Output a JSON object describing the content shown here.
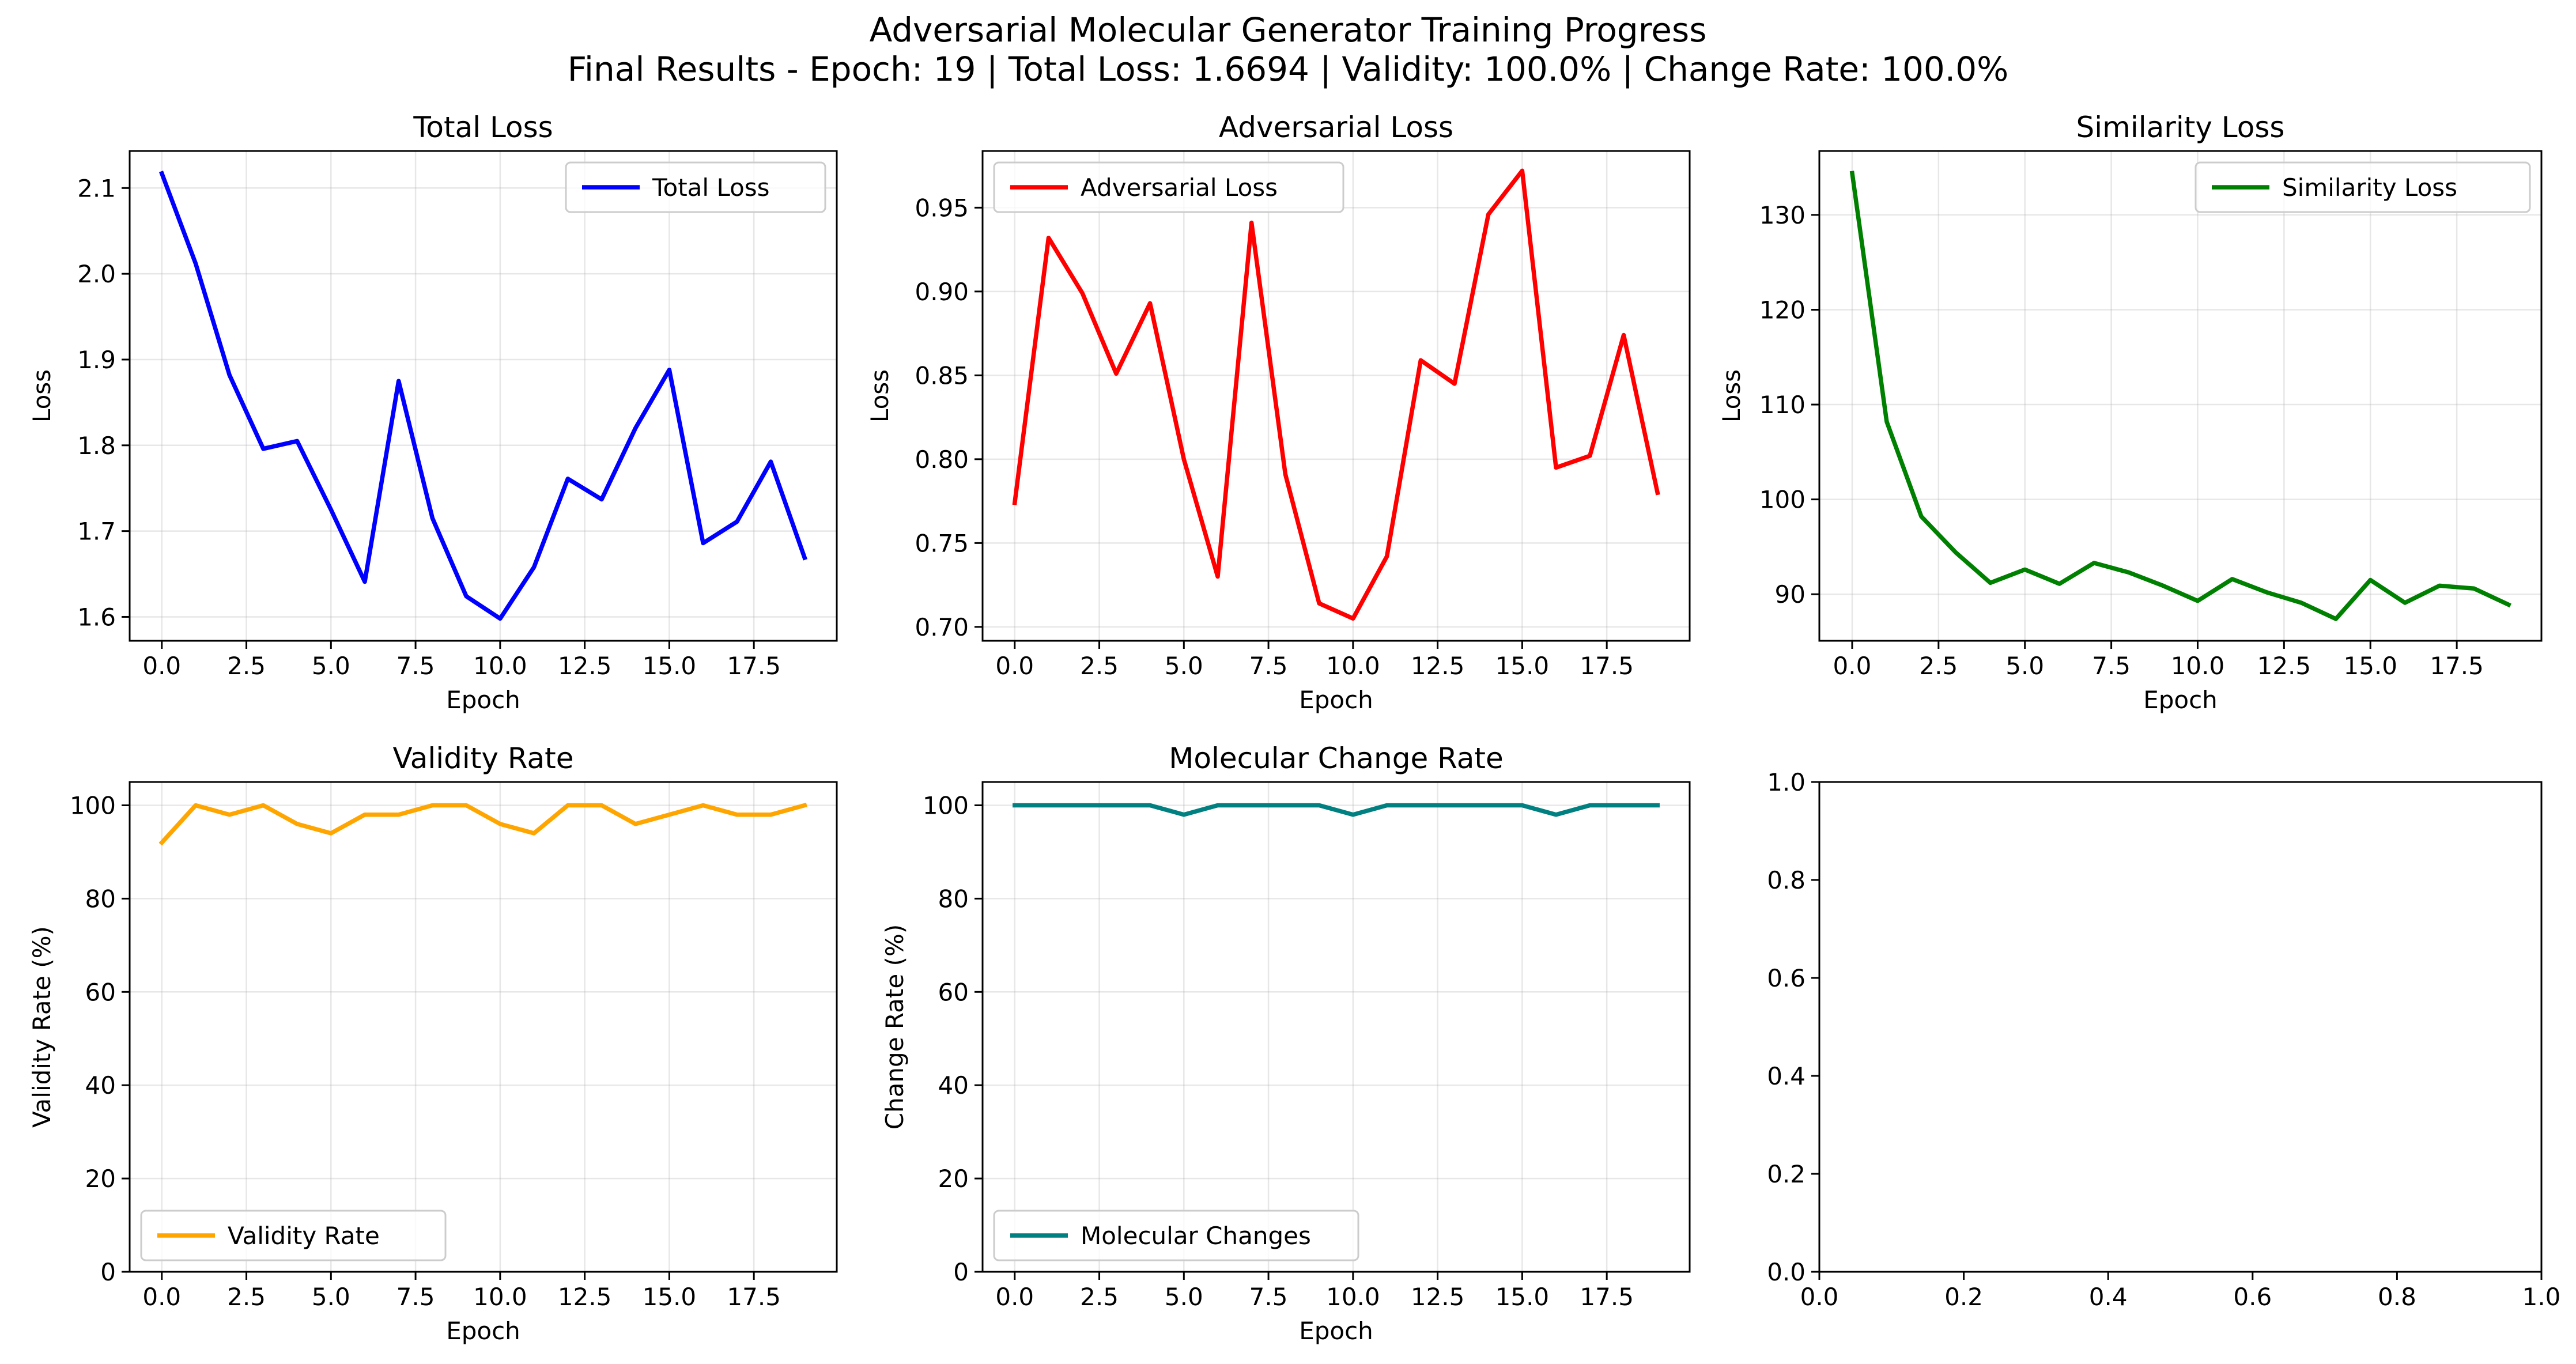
{
  "figure": {
    "suptitle_line1": "Adversarial Molecular Generator Training Progress",
    "suptitle_line2": "Final Results - Epoch: 19 | Total Loss: 1.6694 | Validity: 100.0% | Change Rate: 100.0%"
  },
  "chart_data": [
    {
      "type": "line",
      "title": "Total Loss",
      "xlabel": "Epoch",
      "ylabel": "Loss",
      "xlim": [
        -0.95,
        19.95
      ],
      "ylim": [
        1.5721,
        2.1432
      ],
      "xticks": [
        0,
        2.5,
        5,
        7.5,
        10,
        12.5,
        15,
        17.5
      ],
      "xtick_labels": [
        "0.0",
        "2.5",
        "5.0",
        "7.5",
        "10.0",
        "12.5",
        "15.0",
        "17.5"
      ],
      "yticks": [
        1.6,
        1.7,
        1.8,
        1.9,
        2.0,
        2.1
      ],
      "ytick_labels": [
        "1.6",
        "1.7",
        "1.8",
        "1.9",
        "2.0",
        "2.1"
      ],
      "grid": true,
      "legend": "upper right",
      "series": [
        {
          "name": "Total Loss",
          "color": "#0000ff",
          "x": [
            0,
            1,
            2,
            3,
            4,
            5,
            6,
            7,
            8,
            9,
            10,
            11,
            12,
            13,
            14,
            15,
            16,
            17,
            18,
            19
          ],
          "values": [
            2.117,
            2.012,
            1.882,
            1.796,
            1.805,
            1.725,
            1.641,
            1.875,
            1.715,
            1.624,
            1.598,
            1.658,
            1.761,
            1.737,
            1.82,
            1.888,
            1.686,
            1.711,
            1.781,
            1.669
          ]
        }
      ]
    },
    {
      "type": "line",
      "title": "Adversarial Loss",
      "xlabel": "Epoch",
      "ylabel": "Loss",
      "xlim": [
        -0.95,
        19.95
      ],
      "ylim": [
        0.6917,
        0.9838
      ],
      "xticks": [
        0,
        2.5,
        5,
        7.5,
        10,
        12.5,
        15,
        17.5
      ],
      "xtick_labels": [
        "0.0",
        "2.5",
        "5.0",
        "7.5",
        "10.0",
        "12.5",
        "15.0",
        "17.5"
      ],
      "yticks": [
        0.7,
        0.75,
        0.8,
        0.85,
        0.9,
        0.95
      ],
      "ytick_labels": [
        "0.70",
        "0.75",
        "0.80",
        "0.85",
        "0.90",
        "0.95"
      ],
      "grid": true,
      "legend": "upper left",
      "series": [
        {
          "name": "Adversarial Loss",
          "color": "#ff0000",
          "x": [
            0,
            1,
            2,
            3,
            4,
            5,
            6,
            7,
            8,
            9,
            10,
            11,
            12,
            13,
            14,
            15,
            16,
            17,
            18,
            19
          ],
          "values": [
            0.774,
            0.932,
            0.899,
            0.851,
            0.893,
            0.8,
            0.73,
            0.941,
            0.791,
            0.714,
            0.705,
            0.742,
            0.859,
            0.845,
            0.946,
            0.972,
            0.795,
            0.802,
            0.874,
            0.78
          ]
        }
      ]
    },
    {
      "type": "line",
      "title": "Similarity Loss",
      "xlabel": "Epoch",
      "ylabel": "Loss",
      "xlim": [
        -0.95,
        19.95
      ],
      "ylim": [
        85.09,
        136.74
      ],
      "xticks": [
        0,
        2.5,
        5,
        7.5,
        10,
        12.5,
        15,
        17.5
      ],
      "xtick_labels": [
        "0.0",
        "2.5",
        "5.0",
        "7.5",
        "10.0",
        "12.5",
        "15.0",
        "17.5"
      ],
      "yticks": [
        90,
        100,
        110,
        120,
        130
      ],
      "ytick_labels": [
        "90",
        "100",
        "110",
        "120",
        "130"
      ],
      "grid": true,
      "legend": "upper right",
      "series": [
        {
          "name": "Similarity Loss",
          "color": "#008000",
          "x": [
            0,
            1,
            2,
            3,
            4,
            5,
            6,
            7,
            8,
            9,
            10,
            11,
            12,
            13,
            14,
            15,
            16,
            17,
            18,
            19
          ],
          "values": [
            134.4,
            108.2,
            98.2,
            94.4,
            91.2,
            92.6,
            91.1,
            93.3,
            92.3,
            90.9,
            89.3,
            91.6,
            90.2,
            89.1,
            87.4,
            91.5,
            89.1,
            90.9,
            90.6,
            88.9
          ]
        }
      ]
    },
    {
      "type": "line",
      "title": "Validity Rate",
      "xlabel": "Epoch",
      "ylabel": "Validity Rate (%)",
      "xlim": [
        -0.95,
        19.95
      ],
      "ylim": [
        0,
        105
      ],
      "xticks": [
        0,
        2.5,
        5,
        7.5,
        10,
        12.5,
        15,
        17.5
      ],
      "xtick_labels": [
        "0.0",
        "2.5",
        "5.0",
        "7.5",
        "10.0",
        "12.5",
        "15.0",
        "17.5"
      ],
      "yticks": [
        0,
        20,
        40,
        60,
        80,
        100
      ],
      "ytick_labels": [
        "0",
        "20",
        "40",
        "60",
        "80",
        "100"
      ],
      "grid": true,
      "legend": "lower left",
      "series": [
        {
          "name": "Validity Rate",
          "color": "#ffa500",
          "x": [
            0,
            1,
            2,
            3,
            4,
            5,
            6,
            7,
            8,
            9,
            10,
            11,
            12,
            13,
            14,
            15,
            16,
            17,
            18,
            19
          ],
          "values": [
            92,
            100,
            98,
            100,
            96,
            94,
            98,
            98,
            100,
            100,
            96,
            94,
            100,
            100,
            96,
            98,
            100,
            98,
            98,
            100
          ]
        }
      ]
    },
    {
      "type": "line",
      "title": "Molecular Change Rate",
      "xlabel": "Epoch",
      "ylabel": "Change Rate (%)",
      "xlim": [
        -0.95,
        19.95
      ],
      "ylim": [
        0,
        105
      ],
      "xticks": [
        0,
        2.5,
        5,
        7.5,
        10,
        12.5,
        15,
        17.5
      ],
      "xtick_labels": [
        "0.0",
        "2.5",
        "5.0",
        "7.5",
        "10.0",
        "12.5",
        "15.0",
        "17.5"
      ],
      "yticks": [
        0,
        20,
        40,
        60,
        80,
        100
      ],
      "ytick_labels": [
        "0",
        "20",
        "40",
        "60",
        "80",
        "100"
      ],
      "grid": true,
      "legend": "lower left",
      "series": [
        {
          "name": "Molecular Changes",
          "color": "#008080",
          "x": [
            0,
            1,
            2,
            3,
            4,
            5,
            6,
            7,
            8,
            9,
            10,
            11,
            12,
            13,
            14,
            15,
            16,
            17,
            18,
            19
          ],
          "values": [
            100,
            100,
            100,
            100,
            100,
            98,
            100,
            100,
            100,
            100,
            98,
            100,
            100,
            100,
            100,
            100,
            98,
            100,
            100,
            100
          ]
        }
      ]
    },
    {
      "type": "line",
      "title": "",
      "xlabel": "",
      "ylabel": "",
      "xlim": [
        0,
        1
      ],
      "ylim": [
        0,
        1
      ],
      "xticks": [
        0,
        0.2,
        0.4,
        0.6,
        0.8,
        1.0
      ],
      "xtick_labels": [
        "0.0",
        "0.2",
        "0.4",
        "0.6",
        "0.8",
        "1.0"
      ],
      "yticks": [
        0,
        0.2,
        0.4,
        0.6,
        0.8,
        1.0
      ],
      "ytick_labels": [
        "0.0",
        "0.2",
        "0.4",
        "0.6",
        "0.8",
        "1.0"
      ],
      "grid": false,
      "legend": "none",
      "series": []
    }
  ]
}
